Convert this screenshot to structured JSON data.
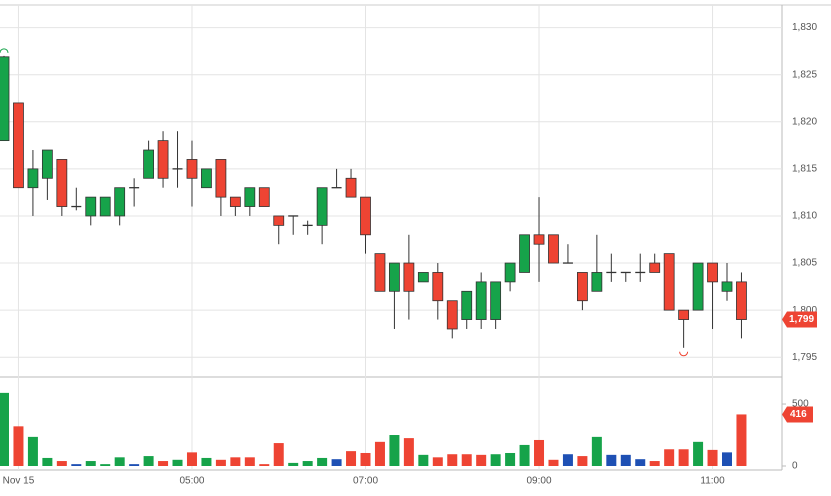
{
  "chart_data": {
    "type": "candlestick",
    "open": [
      1818,
      1822,
      1813,
      1814,
      1816,
      1811,
      1810,
      1810,
      1810,
      1813,
      1814,
      1818,
      1815,
      1816,
      1813,
      1816,
      1812,
      1811,
      1813,
      1810,
      1810,
      1809,
      1809,
      1813,
      1814,
      1812,
      1806,
      1802,
      1805,
      1803,
      1804,
      1801,
      1799,
      1799,
      1799,
      1803,
      1804,
      1808,
      1808,
      1805,
      1804,
      1802,
      1804,
      1804,
      1804,
      1805,
      1806,
      1800,
      1800,
      1805,
      1802,
      1803
    ],
    "high": [
      1827,
      1822,
      1817,
      1817,
      1816,
      1813,
      1812,
      1812,
      1813,
      1814,
      1818,
      1819,
      1819,
      1818,
      1815,
      1816,
      1812,
      1813,
      1813,
      1810,
      1810,
      1809.5,
      1813,
      1815,
      1815,
      1812,
      1806,
      1805,
      1808,
      1804,
      1805,
      1801,
      1802,
      1804,
      1803,
      1805,
      1808,
      1812,
      1808,
      1807,
      1804,
      1808,
      1806,
      1804,
      1806,
      1806,
      1806,
      1800,
      1805,
      1805,
      1805,
      1804
    ],
    "low": [
      1818,
      1813,
      1810,
      1811.7,
      1810,
      1810.6,
      1809,
      1810,
      1809,
      1811,
      1814,
      1813,
      1813,
      1811,
      1813,
      1810,
      1810,
      1810,
      1811,
      1807,
      1808,
      1808,
      1807,
      1813,
      1812,
      1806,
      1802,
      1798,
      1799,
      1803,
      1799,
      1797,
      1798,
      1798,
      1798,
      1802,
      1804,
      1803,
      1805,
      1805,
      1800,
      1802,
      1803,
      1803,
      1803,
      1804,
      1800,
      1796,
      1800,
      1798,
      1801,
      1797
    ],
    "close": [
      1826.9,
      1813,
      1815,
      1817,
      1811,
      1811,
      1812,
      1812,
      1813,
      1813,
      1817,
      1814,
      1815,
      1814,
      1815,
      1812,
      1811,
      1813,
      1811,
      1809,
      1810,
      1809,
      1813,
      1813,
      1812,
      1808,
      1802,
      1805,
      1802,
      1804,
      1801,
      1798,
      1802,
      1803,
      1803,
      1805,
      1808,
      1807,
      1805,
      1805,
      1801,
      1804,
      1804,
      1804,
      1804,
      1804,
      1800,
      1799,
      1805,
      1803,
      1803,
      1799
    ],
    "colors": {
      "up": "#16a34a",
      "down": "#ee4433",
      "unchanged": "#333333"
    },
    "volume": [
      590,
      320,
      235,
      65,
      40,
      15,
      40,
      15,
      70,
      15,
      80,
      40,
      50,
      110,
      65,
      50,
      70,
      70,
      15,
      185,
      25,
      40,
      65,
      55,
      120,
      105,
      195,
      250,
      225,
      90,
      70,
      95,
      95,
      90,
      95,
      105,
      170,
      210,
      50,
      95,
      80,
      235,
      90,
      90,
      55,
      40,
      135,
      135,
      195,
      130,
      110,
      416
    ],
    "volume_colors": [
      "#16a34a",
      "#ee4433",
      "#16a34a",
      "#16a34a",
      "#ee4433",
      "#1e50b4",
      "#16a34a",
      "#16a34a",
      "#16a34a",
      "#1e50b4",
      "#16a34a",
      "#ee4433",
      "#16a34a",
      "#ee4433",
      "#16a34a",
      "#ee4433",
      "#ee4433",
      "#ee4433",
      "#ee4433",
      "#ee4433",
      "#16a34a",
      "#16a34a",
      "#16a34a",
      "#1e50b4",
      "#ee4433",
      "#ee4433",
      "#ee4433",
      "#16a34a",
      "#ee4433",
      "#16a34a",
      "#ee4433",
      "#ee4433",
      "#ee4433",
      "#ee4433",
      "#16a34a",
      "#16a34a",
      "#16a34a",
      "#ee4433",
      "#ee4433",
      "#1e50b4",
      "#ee4433",
      "#16a34a",
      "#1e50b4",
      "#1e50b4",
      "#1e50b4",
      "#ee4433",
      "#ee4433",
      "#ee4433",
      "#16a34a",
      "#ee4433",
      "#1e50b4",
      "#ee4433"
    ],
    "ylim": [
      1792.9,
      1832.4
    ],
    "yticks": [
      {
        "value": 1795,
        "label": "1,795"
      },
      {
        "value": 1800,
        "label": "1,800"
      },
      {
        "value": 1805,
        "label": "1,805"
      },
      {
        "value": 1810,
        "label": "1,810"
      },
      {
        "value": 1815,
        "label": "1,815"
      },
      {
        "value": 1820,
        "label": "1,820"
      },
      {
        "value": 1825,
        "label": "1,825"
      },
      {
        "value": 1830,
        "label": "1,830"
      }
    ],
    "volume_ylim": [
      0,
      710
    ],
    "volume_yticks": [
      0,
      500
    ],
    "xticks": [
      {
        "value": 1,
        "label": "Nov 15"
      },
      {
        "value": 13,
        "label": "05:00"
      },
      {
        "value": 25,
        "label": "07:00"
      },
      {
        "value": 37,
        "label": "09:00"
      },
      {
        "value": 49,
        "label": "11:00"
      }
    ],
    "last_price_label": "1,799",
    "high_marker": 0,
    "low_marker": 47,
    "grid": true
  }
}
